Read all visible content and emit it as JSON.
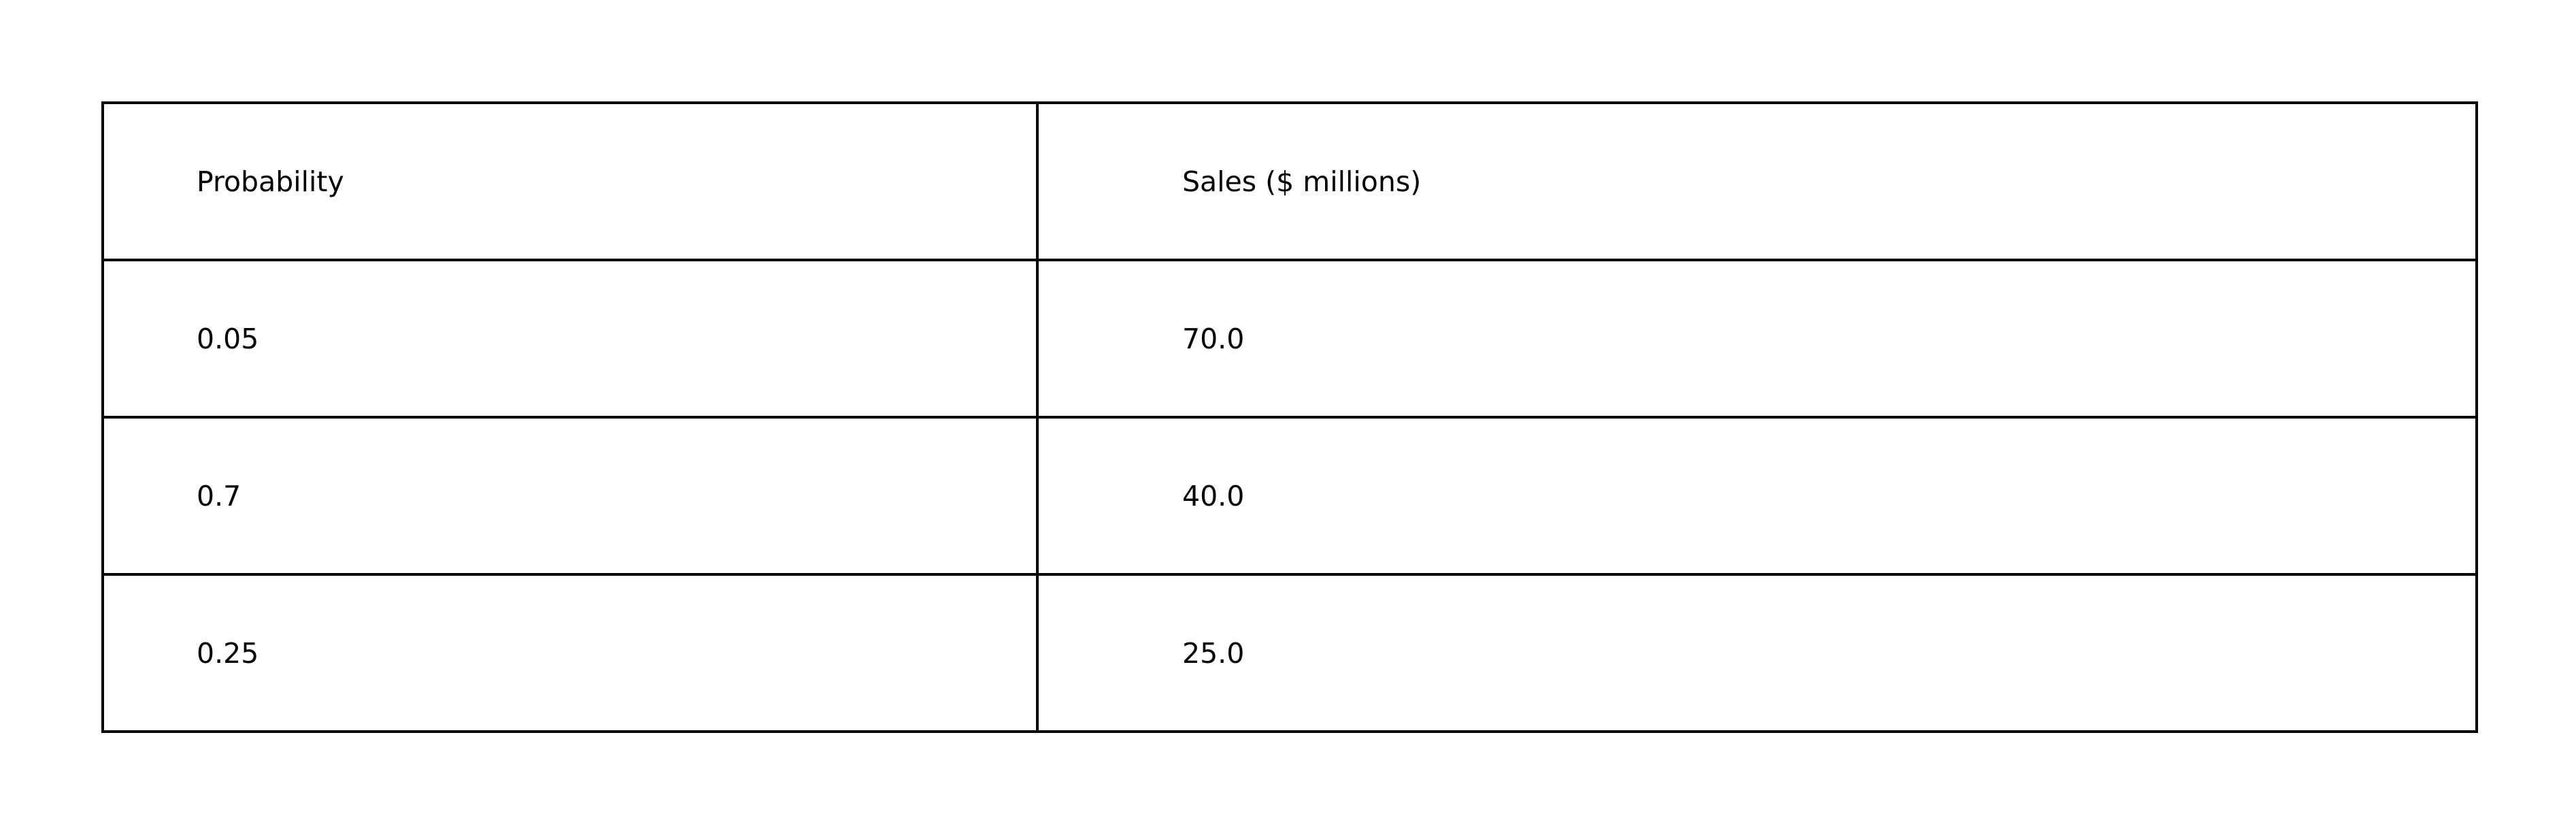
{
  "table": {
    "headers": [
      "Probability",
      "Sales ($ millions)"
    ],
    "rows": [
      [
        "0.05",
        "70.0"
      ],
      [
        "0.7",
        "40.0"
      ],
      [
        "0.25",
        "25.0"
      ]
    ]
  },
  "colors": {
    "background": "#ffffff",
    "border": "#000000",
    "text": "#000000"
  }
}
